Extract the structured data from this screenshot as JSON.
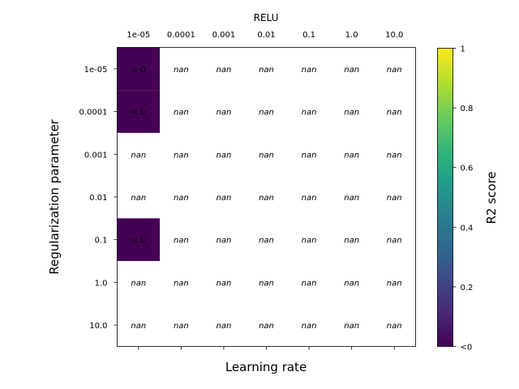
{
  "chart_data": {
    "type": "heatmap",
    "title": "RELU",
    "xlabel": "Learning rate",
    "ylabel": "Regularization parameter",
    "x_categories": [
      "1e-05",
      "0.0001",
      "0.001",
      "0.01",
      "0.1",
      "1.0",
      "10.0"
    ],
    "y_categories": [
      "1e-05",
      "0.0001",
      "0.001",
      "0.01",
      "0.1",
      "1.0",
      "10.0"
    ],
    "cells": [
      [
        "< 0",
        "nan",
        "nan",
        "nan",
        "nan",
        "nan",
        "nan"
      ],
      [
        "< 0",
        "nan",
        "nan",
        "nan",
        "nan",
        "nan",
        "nan"
      ],
      [
        "nan",
        "nan",
        "nan",
        "nan",
        "nan",
        "nan",
        "nan"
      ],
      [
        "nan",
        "nan",
        "nan",
        "nan",
        "nan",
        "nan",
        "nan"
      ],
      [
        "< 0",
        "nan",
        "nan",
        "nan",
        "nan",
        "nan",
        "nan"
      ],
      [
        "nan",
        "nan",
        "nan",
        "nan",
        "nan",
        "nan",
        "nan"
      ],
      [
        "nan",
        "nan",
        "nan",
        "nan",
        "nan",
        "nan",
        "nan"
      ]
    ],
    "colorbar": {
      "label": "R2 score",
      "ticks": [
        "<0",
        "0.2",
        "0.4",
        "0.6",
        "0.8",
        "1"
      ],
      "tick_values": [
        0,
        0.2,
        0.4,
        0.6,
        0.8,
        1
      ],
      "range": [
        0,
        1
      ],
      "colormap": "viridis"
    },
    "colors": {
      "below_zero": "#440154",
      "viridis_stops": [
        "#440154",
        "#482878",
        "#3e4989",
        "#31688e",
        "#26828e",
        "#1f9e89",
        "#35b779",
        "#6ece58",
        "#b5de2b",
        "#fde725"
      ]
    }
  }
}
